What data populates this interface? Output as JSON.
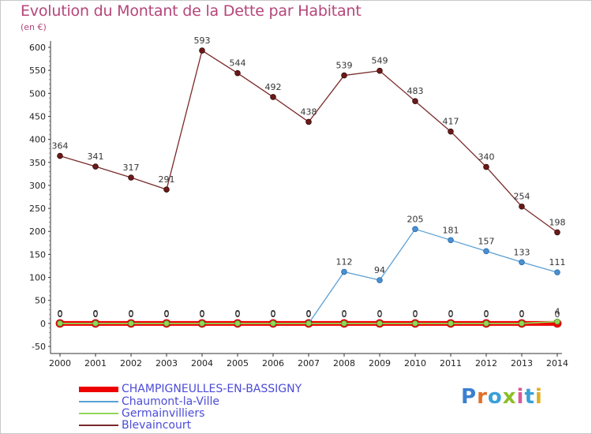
{
  "title": "Evolution du Montant de la Dette par Habitant",
  "unit": "(en €)",
  "logo": "Proxiti",
  "chart_data": {
    "type": "line",
    "x": [
      "2000",
      "2001",
      "2002",
      "2003",
      "2004",
      "2005",
      "2006",
      "2007",
      "2008",
      "2009",
      "2010",
      "2011",
      "2012",
      "2013",
      "2014"
    ],
    "ylim": [
      -50,
      600
    ],
    "yticks": [
      "-50",
      "0",
      "50",
      "100",
      "150",
      "200",
      "250",
      "300",
      "350",
      "400",
      "450",
      "500",
      "550",
      "600"
    ],
    "grid": false,
    "legend_position": "bottom-left",
    "series": [
      {
        "name": "CHAMPIGNEULLES-EN-BASSIGNY",
        "color": "#ee0000",
        "values": [
          0,
          0,
          0,
          0,
          0,
          0,
          0,
          0,
          0,
          0,
          0,
          0,
          0,
          0,
          0
        ],
        "labels": [
          "0",
          "0",
          "0",
          "0",
          "0",
          "0",
          "0",
          "0",
          "0",
          "0",
          "0",
          "0",
          "0",
          "0",
          "0"
        ]
      },
      {
        "name": "Chaumont-la-Ville",
        "color": "#5a9fd4",
        "values": [
          0,
          0,
          0,
          0,
          0,
          0,
          0,
          0,
          112,
          94,
          205,
          181,
          157,
          133,
          111
        ],
        "labels": [
          "0",
          "0",
          "0",
          "0",
          "0",
          "0",
          "0",
          "0",
          "112",
          "94",
          "205",
          "181",
          "157",
          "133",
          "111"
        ]
      },
      {
        "name": "Germainvilliers",
        "color": "#90d858",
        "values": [
          0,
          0,
          0,
          0,
          0,
          0,
          0,
          0,
          0,
          0,
          0,
          0,
          0,
          0,
          4
        ],
        "labels": [
          "0",
          "0",
          "0",
          "0",
          "0",
          "0",
          "0",
          "0",
          "0",
          "0",
          "0",
          "0",
          "0",
          "0",
          "4"
        ]
      },
      {
        "name": "Blevaincourt",
        "color": "#7a2a2a",
        "values": [
          364,
          341,
          317,
          291,
          593,
          544,
          492,
          438,
          539,
          549,
          483,
          417,
          340,
          254,
          198
        ],
        "labels": [
          "364",
          "341",
          "317",
          "291",
          "593",
          "544",
          "492",
          "438",
          "539",
          "549",
          "483",
          "417",
          "340",
          "254",
          "198"
        ]
      }
    ]
  }
}
